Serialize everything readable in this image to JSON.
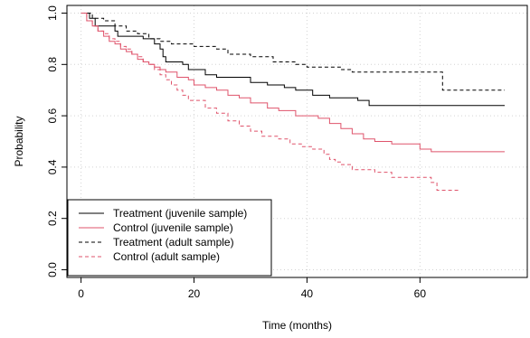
{
  "chart_data": {
    "type": "line",
    "chart_kind": "Kaplan-Meier survival curves (step)",
    "xlabel": "Time (months)",
    "ylabel": "Probability",
    "xlim": [
      -2.5,
      79
    ],
    "ylim": [
      -0.03,
      1.03
    ],
    "xticks": [
      0,
      20,
      40,
      60
    ],
    "yticks": [
      0.0,
      0.2,
      0.4,
      0.6,
      0.8,
      1.0
    ],
    "ytick_labels": [
      "0.0",
      "0.2",
      "0.4",
      "0.6",
      "0.8",
      "1.0"
    ],
    "grid": true,
    "legend_position": "bottom-left",
    "series": [
      {
        "name": "Treatment (juvenile sample)",
        "color": "#000000",
        "style": "solid-dark",
        "points": [
          [
            0,
            1.0
          ],
          [
            1.5,
            0.98
          ],
          [
            2.5,
            0.95
          ],
          [
            6,
            0.93
          ],
          [
            6.5,
            0.91
          ],
          [
            11,
            0.9
          ],
          [
            13,
            0.88
          ],
          [
            14,
            0.86
          ],
          [
            14.5,
            0.83
          ],
          [
            15,
            0.81
          ],
          [
            18,
            0.8
          ],
          [
            19,
            0.78
          ],
          [
            22,
            0.76
          ],
          [
            24,
            0.75
          ],
          [
            30,
            0.73
          ],
          [
            33,
            0.72
          ],
          [
            36,
            0.71
          ],
          [
            38,
            0.7
          ],
          [
            41,
            0.68
          ],
          [
            44,
            0.67
          ],
          [
            49,
            0.66
          ],
          [
            51,
            0.64
          ],
          [
            75,
            0.64
          ]
        ]
      },
      {
        "name": "Control (juvenile sample)",
        "color": "#DF536B",
        "style": "solid",
        "points": [
          [
            0,
            1.0
          ],
          [
            1,
            0.97
          ],
          [
            2,
            0.95
          ],
          [
            3,
            0.93
          ],
          [
            4,
            0.91
          ],
          [
            5,
            0.89
          ],
          [
            6,
            0.88
          ],
          [
            7,
            0.86
          ],
          [
            8,
            0.85
          ],
          [
            9,
            0.84
          ],
          [
            10,
            0.82
          ],
          [
            11,
            0.81
          ],
          [
            12,
            0.8
          ],
          [
            13,
            0.79
          ],
          [
            14,
            0.78
          ],
          [
            15,
            0.77
          ],
          [
            17,
            0.75
          ],
          [
            19,
            0.74
          ],
          [
            20,
            0.72
          ],
          [
            22,
            0.71
          ],
          [
            24,
            0.7
          ],
          [
            26,
            0.68
          ],
          [
            28,
            0.67
          ],
          [
            30,
            0.65
          ],
          [
            33,
            0.63
          ],
          [
            35,
            0.62
          ],
          [
            38,
            0.6
          ],
          [
            42,
            0.59
          ],
          [
            44,
            0.57
          ],
          [
            46,
            0.55
          ],
          [
            48,
            0.53
          ],
          [
            50,
            0.51
          ],
          [
            52,
            0.5
          ],
          [
            55,
            0.49
          ],
          [
            60,
            0.47
          ],
          [
            62,
            0.46
          ],
          [
            75,
            0.46
          ]
        ]
      },
      {
        "name": "Treatment (adult sample)",
        "color": "#000000",
        "style": "dashed",
        "points": [
          [
            0,
            1.0
          ],
          [
            2,
            0.98
          ],
          [
            4,
            0.97
          ],
          [
            6,
            0.95
          ],
          [
            8,
            0.93
          ],
          [
            10,
            0.92
          ],
          [
            12,
            0.9
          ],
          [
            14,
            0.89
          ],
          [
            16,
            0.88
          ],
          [
            20,
            0.87
          ],
          [
            24,
            0.86
          ],
          [
            26,
            0.84
          ],
          [
            30,
            0.83
          ],
          [
            34,
            0.81
          ],
          [
            38,
            0.8
          ],
          [
            40,
            0.79
          ],
          [
            46,
            0.78
          ],
          [
            48,
            0.77
          ],
          [
            63,
            0.77
          ],
          [
            64,
            0.7
          ],
          [
            75,
            0.7
          ]
        ]
      },
      {
        "name": "Control (adult sample)",
        "color": "#DF536B",
        "style": "dashed",
        "points": [
          [
            0,
            1.0
          ],
          [
            1,
            0.97
          ],
          [
            2,
            0.95
          ],
          [
            3,
            0.93
          ],
          [
            4,
            0.92
          ],
          [
            5,
            0.9
          ],
          [
            6,
            0.89
          ],
          [
            7,
            0.87
          ],
          [
            8,
            0.86
          ],
          [
            9,
            0.84
          ],
          [
            10,
            0.83
          ],
          [
            11,
            0.81
          ],
          [
            12,
            0.8
          ],
          [
            13,
            0.78
          ],
          [
            14,
            0.76
          ],
          [
            15,
            0.74
          ],
          [
            16,
            0.72
          ],
          [
            17,
            0.7
          ],
          [
            18,
            0.68
          ],
          [
            19,
            0.66
          ],
          [
            22,
            0.63
          ],
          [
            24,
            0.61
          ],
          [
            26,
            0.58
          ],
          [
            28,
            0.56
          ],
          [
            30,
            0.54
          ],
          [
            32,
            0.52
          ],
          [
            35,
            0.51
          ],
          [
            37,
            0.49
          ],
          [
            39,
            0.48
          ],
          [
            41,
            0.47
          ],
          [
            43,
            0.45
          ],
          [
            44,
            0.43
          ],
          [
            45,
            0.42
          ],
          [
            46,
            0.41
          ],
          [
            48,
            0.39
          ],
          [
            52,
            0.38
          ],
          [
            55,
            0.36
          ],
          [
            62,
            0.34
          ],
          [
            63,
            0.31
          ],
          [
            67,
            0.31
          ]
        ]
      }
    ]
  }
}
